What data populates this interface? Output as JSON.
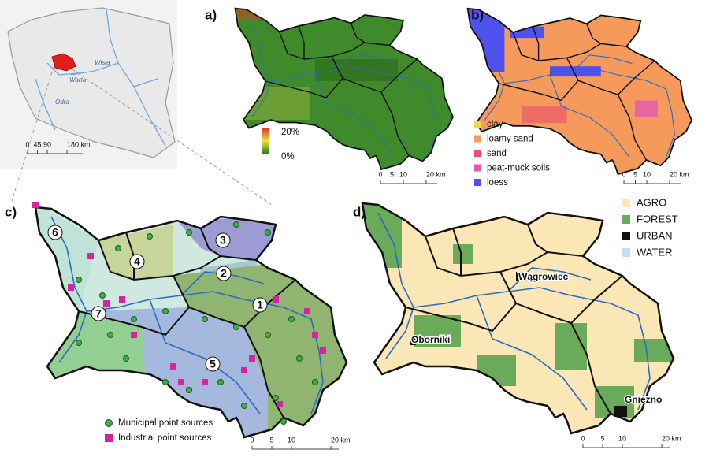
{
  "inset": {
    "rivers": [
      "Wisła",
      "Warta",
      "Odra"
    ],
    "scale": [
      "0",
      "45",
      "90",
      "180 km"
    ]
  },
  "panels": [
    {
      "label": "a)",
      "legend": [
        "20%",
        "0%"
      ],
      "scale": [
        "0",
        "5",
        "10",
        "20 km"
      ]
    },
    {
      "label": "b)",
      "legend": [
        {
          "name": "clay",
          "color": "#f5d54a"
        },
        {
          "name": "loamy sand",
          "color": "#f59a5a"
        },
        {
          "name": "sand",
          "color": "#e8506e"
        },
        {
          "name": "peat-muck soils",
          "color": "#e05ab4"
        },
        {
          "name": "loess",
          "color": "#5050f0"
        }
      ],
      "scale": [
        "0",
        "5",
        "10",
        "20 km"
      ]
    },
    {
      "label": "c)",
      "catchments": [
        "1",
        "2",
        "3",
        "4",
        "5",
        "6",
        "7"
      ],
      "legend": [
        {
          "name": "Municipal point sources",
          "color": "#3cb043"
        },
        {
          "name": "Industrial point sources",
          "color": "#d6249f"
        }
      ],
      "scale": [
        "0",
        "5",
        "10",
        "20 km"
      ]
    },
    {
      "label": "d)",
      "legend": [
        {
          "name": "AGRO",
          "color": "#fbe7b5"
        },
        {
          "name": "FOREST",
          "color": "#6aab5a"
        },
        {
          "name": "URBAN",
          "color": "#111111"
        },
        {
          "name": "WATER",
          "color": "#bfe0f5"
        }
      ],
      "towns": [
        "Wągrowiec",
        "Oborniki",
        "Gniezno"
      ],
      "scale": [
        "0",
        "5",
        "10",
        "20 km"
      ]
    }
  ]
}
